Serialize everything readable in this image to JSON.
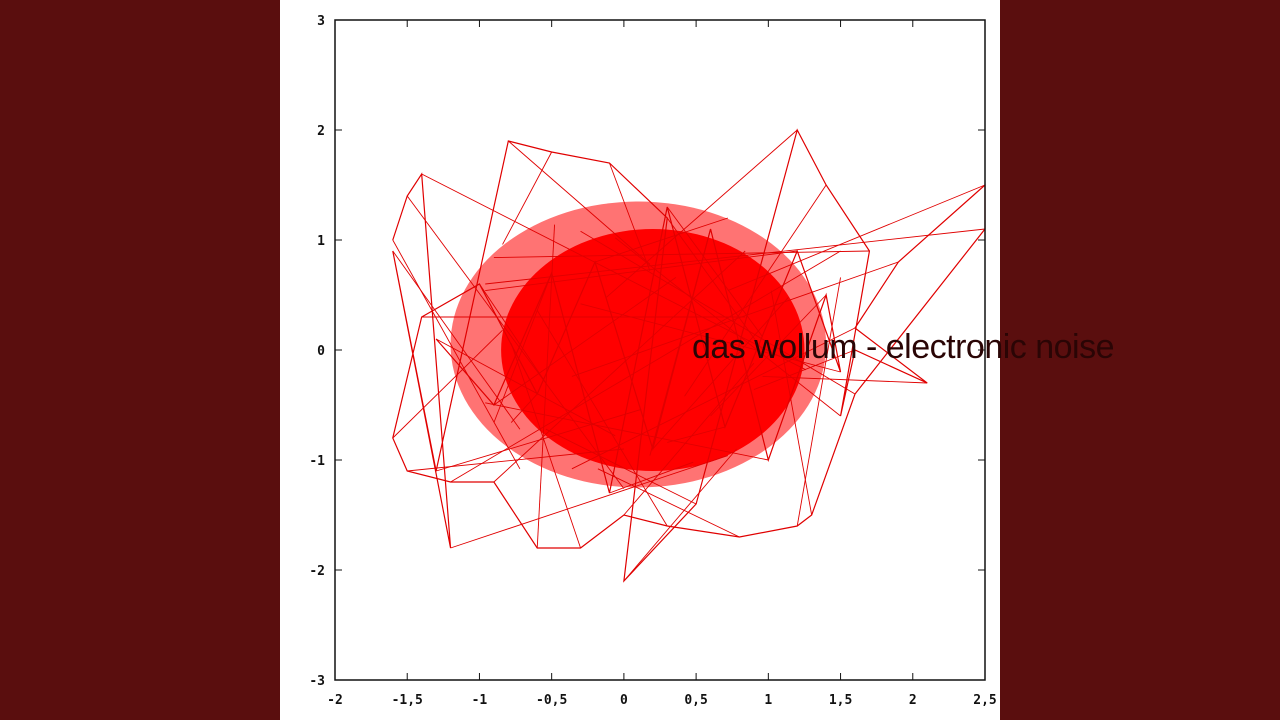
{
  "colors": {
    "background": "#5a0e0e",
    "line": "#e00000",
    "core": "#ff0000",
    "axis": "#111111"
  },
  "cover_text": "das wollum - electronic noise",
  "chart_data": {
    "type": "line",
    "xlim": [
      -2,
      2.5
    ],
    "ylim": [
      -3,
      3
    ],
    "xticks": [
      "-2",
      "-1,5",
      "-1",
      "-0,5",
      "0",
      "0,5",
      "1",
      "1,5",
      "2",
      "2,5"
    ],
    "xtick_values": [
      -2,
      -1.5,
      -1,
      -0.5,
      0,
      0.5,
      1,
      1.5,
      2,
      2.5
    ],
    "yticks": [
      "3",
      "2",
      "1",
      "0",
      "-1",
      "-2",
      "-3"
    ],
    "ytick_values": [
      3,
      2,
      1,
      0,
      -1,
      -2,
      -3
    ],
    "grid": false,
    "series": [
      {
        "x": [
          -1.6,
          -1.5,
          -1.4,
          -1.2,
          -1.6,
          -1.3,
          -0.8,
          -0.5,
          -0.1,
          0.3,
          0.0,
          0.5,
          1.2,
          1.4,
          1.7,
          1.5,
          1.6,
          2.1,
          1.6,
          1.9,
          2.5,
          2.5,
          1.6,
          1.3,
          1.2,
          0.8,
          0.3,
          0.0,
          -0.3,
          -0.6,
          -0.9,
          -1.2,
          -1.5,
          -1.6,
          -1.4,
          -1.0,
          -0.6,
          -0.2,
          0.2,
          0.6,
          1.0,
          1.4,
          1.5,
          1.2,
          0.7,
          0.3,
          -0.1,
          -0.5,
          -0.9,
          -1.3
        ],
        "y": [
          1.0,
          1.4,
          1.6,
          -1.8,
          0.9,
          -1.1,
          1.9,
          1.8,
          1.7,
          1.2,
          -2.1,
          -1.4,
          2.0,
          1.5,
          0.9,
          -0.6,
          0.0,
          -0.3,
          0.2,
          0.8,
          1.5,
          1.1,
          -0.4,
          -1.5,
          -1.6,
          -1.7,
          -1.6,
          -1.5,
          -1.8,
          -1.8,
          -1.2,
          -1.2,
          -1.1,
          -0.8,
          0.3,
          0.6,
          -0.4,
          0.8,
          -0.9,
          1.1,
          -1.0,
          0.5,
          -0.2,
          0.9,
          -0.7,
          1.3,
          -1.3,
          0.7,
          -0.5,
          0.1
        ]
      }
    ]
  }
}
